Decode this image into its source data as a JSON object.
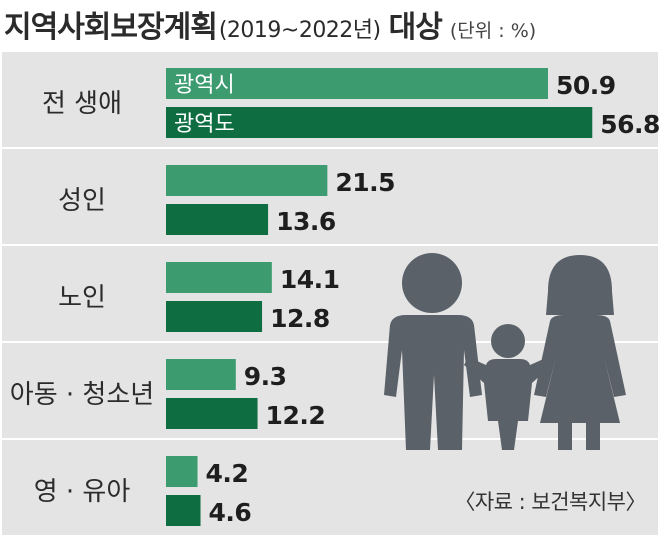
{
  "header": {
    "title": "지역사회보장계획",
    "years": "(2019~2022년)",
    "target": "대상",
    "unit": "(단위 : %)"
  },
  "source": "〈자료 : 보건복지부〉",
  "icons": {
    "illustration": "family-icon"
  },
  "colors": {
    "band": "#e4e4e4",
    "series_light": "#3d9b70",
    "series_dark": "#0e6e41",
    "figure": "#5a6169",
    "divider": "#ffffff"
  },
  "chart_data": {
    "type": "bar",
    "orientation": "horizontal",
    "categories": [
      "전 생애",
      "성인",
      "노인",
      "아동 · 청소년",
      "영 · 유아"
    ],
    "series": [
      {
        "name": "광역시",
        "values": [
          50.9,
          21.5,
          14.1,
          9.3,
          4.2
        ]
      },
      {
        "name": "광역도",
        "values": [
          56.8,
          13.6,
          12.8,
          12.2,
          4.6
        ]
      }
    ],
    "xlim": [
      0,
      60
    ],
    "legend": "inside-first-group-bars",
    "grid": false
  }
}
